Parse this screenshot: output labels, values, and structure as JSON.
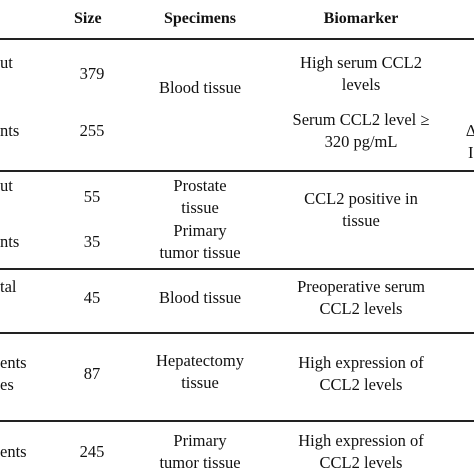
{
  "header": {
    "size": "Size",
    "specimens": "Specimens",
    "biomarker": "Biomarker"
  },
  "rows": [
    {
      "left_lines": [
        "ut",
        "nts"
      ],
      "sizes": [
        "379",
        "255"
      ],
      "specimen_lines": [
        "Blood tissue"
      ],
      "biomarker_groups": [
        [
          "High serum CCL2",
          "levels"
        ],
        [
          "Serum CCL2 level ≥",
          "320 pg/mL"
        ]
      ],
      "right_fragments": [
        "∆",
        "I"
      ]
    },
    {
      "left_lines": [
        "ut",
        "nts"
      ],
      "sizes": [
        "55",
        "35"
      ],
      "specimen_groups": [
        [
          "Prostate",
          "tissue"
        ],
        [
          "Primary",
          "tumor tissue"
        ]
      ],
      "biomarker_lines": [
        "CCL2 positive in",
        "tissue"
      ]
    },
    {
      "left_lines": [
        "tal"
      ],
      "sizes": [
        "45"
      ],
      "specimen_lines": [
        "Blood tissue"
      ],
      "biomarker_lines": [
        "Preoperative serum",
        "CCL2 levels"
      ]
    },
    {
      "left_lines": [
        "ents",
        "es"
      ],
      "sizes": [
        "87"
      ],
      "specimen_lines": [
        "Hepatectomy",
        "tissue"
      ],
      "biomarker_lines": [
        "High expression of",
        "CCL2 levels"
      ]
    },
    {
      "left_lines": [
        "ents"
      ],
      "sizes": [
        "245"
      ],
      "specimen_lines": [
        "Primary",
        "tumor tissue"
      ],
      "biomarker_lines": [
        "High expression of",
        "CCL2 levels"
      ]
    }
  ]
}
